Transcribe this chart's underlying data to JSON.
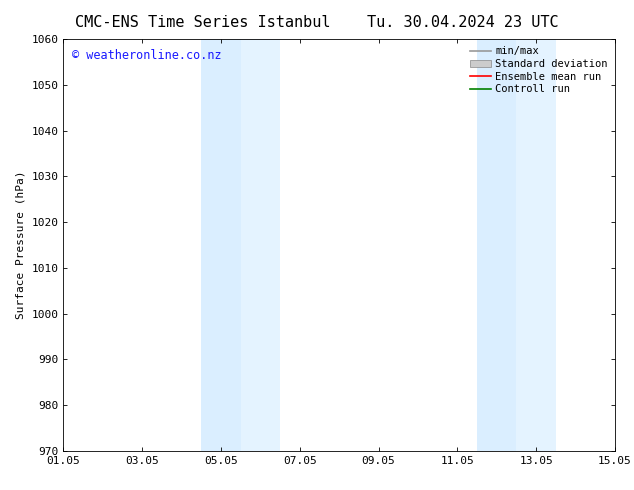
{
  "title": "CMC-ENS Time Series Istanbul",
  "title_right": "Tu. 30.04.2024 23 UTC",
  "ylabel": "Surface Pressure (hPa)",
  "ylim": [
    970,
    1060
  ],
  "yticks": [
    970,
    980,
    990,
    1000,
    1010,
    1020,
    1030,
    1040,
    1050,
    1060
  ],
  "xlim_start": 0,
  "xlim_end": 14,
  "xtick_positions": [
    0,
    2,
    4,
    6,
    8,
    10,
    12,
    14
  ],
  "xtick_labels": [
    "01.05",
    "03.05",
    "05.05",
    "07.05",
    "09.05",
    "11.05",
    "13.05",
    "15.05"
  ],
  "watermark": "© weatheronline.co.nz",
  "watermark_color": "#1a1aff",
  "bg_color": "#ffffff",
  "plot_bg_color": "#ffffff",
  "bands": [
    {
      "x_start": 3.5,
      "x_end": 4.5
    },
    {
      "x_start": 4.5,
      "x_end": 5.5
    },
    {
      "x_start": 10.5,
      "x_end": 11.5
    },
    {
      "x_start": 11.5,
      "x_end": 12.5
    }
  ],
  "band_color": "#daeeff",
  "band_color2": "#e4f3ff",
  "legend_items": [
    {
      "label": "min/max",
      "color": "#999999",
      "type": "line"
    },
    {
      "label": "Standard deviation",
      "color": "#cccccc",
      "type": "fill"
    },
    {
      "label": "Ensemble mean run",
      "color": "#ff0000",
      "type": "line"
    },
    {
      "label": "Controll run",
      "color": "#008000",
      "type": "line"
    }
  ],
  "font_family": "DejaVu Sans Mono",
  "title_fontsize": 11,
  "tick_fontsize": 8,
  "legend_fontsize": 7.5,
  "watermark_fontsize": 8.5,
  "ylabel_fontsize": 8
}
